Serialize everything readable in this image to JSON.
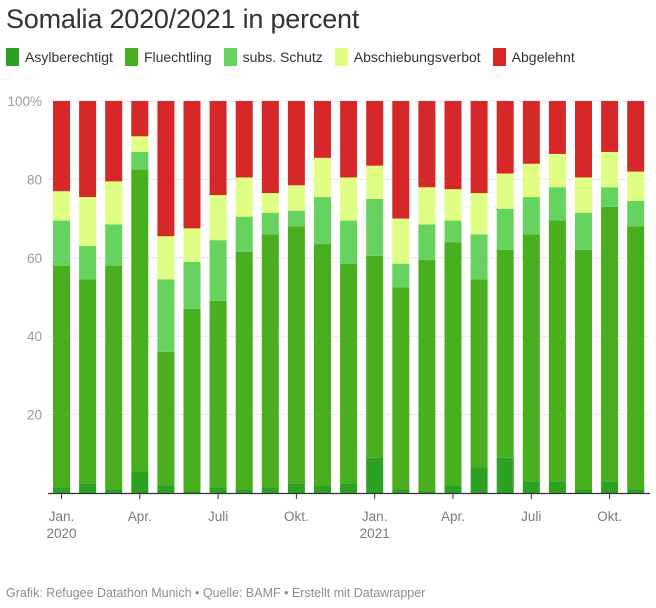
{
  "title": "Somalia 2020/2021 in percent",
  "footer": "Grafik: Refugee Datathon Munich • Quelle: BAMF • Erstellt mit Datawrapper",
  "legend": [
    {
      "label": "Asylberechtigt",
      "color": "#2ba221"
    },
    {
      "label": "Fluechtling",
      "color": "#4aaf1f"
    },
    {
      "label": "subs. Schutz",
      "color": "#66d35e"
    },
    {
      "label": "Abschiebungsverbot",
      "color": "#e0fd84"
    },
    {
      "label": "Abgelehnt",
      "color": "#d62828"
    }
  ],
  "chart_data": {
    "type": "bar",
    "stacked": true,
    "title": "Somalia 2020/2021 in percent",
    "xlabel": "",
    "ylabel": "",
    "ylim": [
      0,
      100
    ],
    "yticks": [
      {
        "value": 100,
        "label": "100%"
      },
      {
        "value": 80,
        "label": "80"
      },
      {
        "value": 60,
        "label": "60"
      },
      {
        "value": 40,
        "label": "40"
      },
      {
        "value": 20,
        "label": "20"
      }
    ],
    "grid": true,
    "legend_position": "top-left",
    "categories": [
      "2020-01",
      "2020-02",
      "2020-03",
      "2020-04",
      "2020-05",
      "2020-06",
      "2020-07",
      "2020-08",
      "2020-09",
      "2020-10",
      "2020-11",
      "2020-12",
      "2021-01",
      "2021-02",
      "2021-03",
      "2021-04",
      "2021-05",
      "2021-06",
      "2021-07",
      "2021-08",
      "2021-09",
      "2021-10",
      "2021-11"
    ],
    "xticks": [
      {
        "index": 0,
        "label": "Jan.",
        "sublabel": "2020"
      },
      {
        "index": 3,
        "label": "Apr.",
        "sublabel": ""
      },
      {
        "index": 6,
        "label": "Juli",
        "sublabel": ""
      },
      {
        "index": 9,
        "label": "Okt.",
        "sublabel": ""
      },
      {
        "index": 12,
        "label": "Jan.",
        "sublabel": "2021"
      },
      {
        "index": 15,
        "label": "Apr.",
        "sublabel": ""
      },
      {
        "index": 18,
        "label": "Juli",
        "sublabel": ""
      },
      {
        "index": 21,
        "label": "Okt.",
        "sublabel": ""
      }
    ],
    "series": [
      {
        "name": "Asylberechtigt",
        "color": "#2ba221",
        "values": [
          1.5,
          2.5,
          1,
          5.5,
          2,
          0.5,
          1.5,
          1,
          1.5,
          2.5,
          2,
          2.5,
          9,
          1,
          0.5,
          2,
          6.5,
          9,
          3,
          3,
          1,
          3,
          1
        ]
      },
      {
        "name": "Fluechtling",
        "color": "#4aaf1f",
        "values": [
          56.5,
          52,
          57,
          77,
          34,
          46.5,
          47.5,
          60.5,
          64.5,
          65.5,
          61.5,
          56,
          51.5,
          51.5,
          59,
          62,
          48,
          53,
          63,
          66.5,
          61,
          70,
          67
        ]
      },
      {
        "name": "subs. Schutz",
        "color": "#66d35e",
        "values": [
          11.5,
          8.5,
          10.5,
          4.5,
          18.5,
          12,
          15.5,
          9,
          5.5,
          4,
          12,
          11,
          14.5,
          6,
          9,
          5.5,
          11.5,
          10.5,
          9.5,
          8.5,
          9.5,
          5,
          6.5
        ]
      },
      {
        "name": "Abschiebungsverbot",
        "color": "#e0fd84",
        "values": [
          7.5,
          12.5,
          11,
          4,
          11,
          8.5,
          11.5,
          10,
          5,
          6.5,
          10,
          11,
          8.5,
          11.5,
          9.5,
          8,
          10.5,
          9,
          8.5,
          8.5,
          9,
          9,
          7.5
        ]
      },
      {
        "name": "Abgelehnt",
        "color": "#d62828",
        "values": [
          23,
          24.5,
          20.5,
          9,
          34.5,
          32.5,
          24,
          19.5,
          23.5,
          21.5,
          14.5,
          19.5,
          16.5,
          30,
          22,
          22.5,
          23.5,
          18.5,
          16,
          13.5,
          19.5,
          13,
          18
        ]
      }
    ]
  }
}
